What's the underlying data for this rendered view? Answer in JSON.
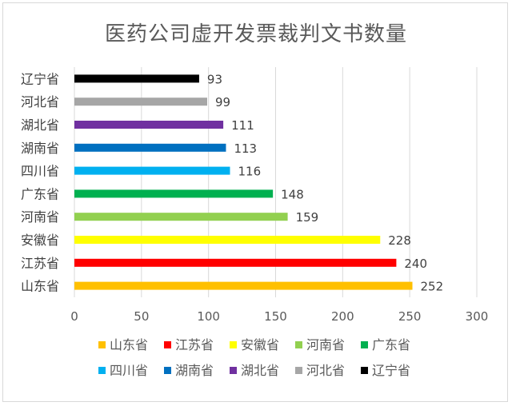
{
  "chart_data": {
    "type": "bar",
    "orientation": "horizontal",
    "title": "医药公司虚开发票裁判文书数量",
    "categories": [
      "山东省",
      "江苏省",
      "安徽省",
      "河南省",
      "广东省",
      "四川省",
      "湖南省",
      "湖北省",
      "河北省",
      "辽宁省"
    ],
    "values": [
      252,
      240,
      228,
      159,
      148,
      116,
      113,
      111,
      99,
      93
    ],
    "colors": [
      "#FFC000",
      "#FF0000",
      "#FFFF00",
      "#92D050",
      "#00B050",
      "#00B0F0",
      "#0070C0",
      "#7030A0",
      "#A6A6A6",
      "#000000"
    ],
    "xlim": [
      0,
      300
    ],
    "xticks": [
      0,
      50,
      100,
      150,
      200,
      250,
      300
    ],
    "grid": true,
    "legend": {
      "position": "bottom",
      "rows": [
        [
          "山东省",
          "江苏省",
          "安徽省",
          "河南省",
          "广东省"
        ],
        [
          "四川省",
          "湖南省",
          "湖北省",
          "河北省",
          "辽宁省"
        ]
      ]
    }
  }
}
